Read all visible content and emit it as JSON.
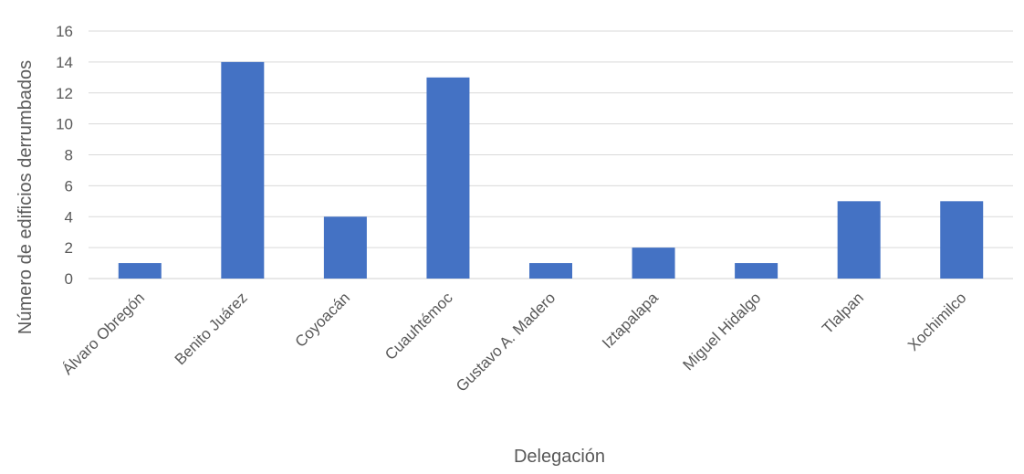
{
  "chart_data": {
    "type": "bar",
    "title": "",
    "xlabel": "Delegación",
    "ylabel": "Número de edificios derrumbados",
    "categories": [
      "Álvaro Obregón",
      "Benito Juárez",
      "Coyoacán",
      "Cuauhtémoc",
      "Gustavo A. Madero",
      "Iztapalapa",
      "Miguel Hidalgo",
      "Tlalpan",
      "Xochimilco"
    ],
    "values": [
      1,
      14,
      4,
      13,
      1,
      2,
      1,
      5,
      5
    ],
    "ylim": [
      0,
      16
    ],
    "yticks": [
      0,
      2,
      4,
      6,
      8,
      10,
      12,
      14,
      16
    ],
    "grid": true,
    "legend": "none",
    "bar_color": "#4472c4",
    "grid_color": "#d9d9d9",
    "text_color": "#595959"
  }
}
